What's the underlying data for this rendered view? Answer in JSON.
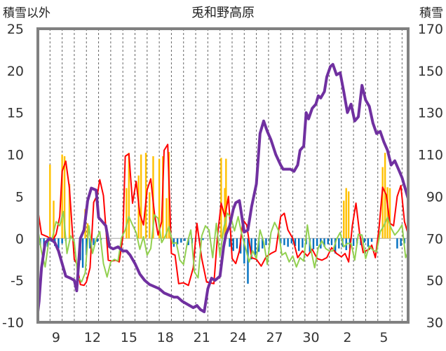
{
  "chart_data": {
    "type": "line",
    "title": "兎和野高原",
    "left_axis": {
      "label": "積雪以外",
      "ylim": [
        -10,
        25
      ],
      "ticks": [
        "25",
        "20",
        "15",
        "10",
        "5",
        "0",
        "-5",
        "-10"
      ]
    },
    "right_axis": {
      "label": "積雪",
      "ylim": [
        30,
        170
      ],
      "ticks": [
        "170",
        "150",
        "130",
        "110",
        "90",
        "70",
        "50",
        "30"
      ]
    },
    "x_tick_labels": [
      "9",
      "12",
      "15",
      "18",
      "21",
      "24",
      "27",
      "30",
      "2",
      "5"
    ],
    "x_tick_positions_days": [
      1.5,
      4.5,
      7.5,
      10.5,
      13.5,
      16.5,
      19.5,
      22.5,
      25.5,
      28.5
    ],
    "xlim_days": [
      0,
      30.5
    ],
    "grid": {
      "vertical_dashed": true,
      "horizontal": false
    },
    "colors": {
      "temperature_max": "#ff0000",
      "temperature_min": "#92d050",
      "sunshine": "#ffc000",
      "precipitation": "#0070c0",
      "snow_depth": "#7030a0",
      "frame": "#808080",
      "grid": "#666666"
    },
    "series": [
      {
        "axis": "left",
        "kind": "line",
        "x": [
          0,
          0.3,
          0.8,
          1.2,
          1.5,
          1.8,
          2.0,
          2.3,
          2.6,
          3.0,
          3.2,
          3.5,
          3.8,
          4.0,
          4.3,
          4.6,
          4.9,
          5.1,
          5.4,
          5.8,
          6.1,
          6.4,
          6.7,
          7.0,
          7.2,
          7.5,
          7.8,
          8.1,
          8.4,
          8.7,
          9.0,
          9.3,
          9.6,
          9.9,
          10.2,
          10.4,
          10.7,
          11.0,
          11.3,
          11.6,
          12.0,
          12.4,
          12.8,
          13.1,
          13.5,
          13.9,
          14.2,
          14.5,
          14.8,
          15.1,
          15.4,
          15.7,
          16.0,
          16.3,
          16.6,
          16.9,
          17.2,
          17.6,
          18.0,
          18.4,
          18.8,
          19.2,
          19.6,
          20.0,
          20.3,
          20.6,
          21.0,
          21.4,
          21.8,
          22.2,
          22.6,
          23.0,
          23.4,
          23.8,
          24.2,
          24.6,
          25.0,
          25.3,
          25.6,
          25.9,
          26.2,
          26.5,
          26.8,
          27.0,
          27.3,
          27.5,
          27.8,
          28.1,
          28.4,
          28.7,
          29.0,
          29.3,
          29.6,
          29.9,
          30.2,
          30.5
        ],
        "values": [
          3.4,
          0.5,
          0.2,
          -0.3,
          0.5,
          2.6,
          8.0,
          9.2,
          6.0,
          -2.5,
          -3.0,
          -5.5,
          -5.6,
          -5.2,
          -3.5,
          4.3,
          5.2,
          7.0,
          5.1,
          -2.6,
          -2.7,
          -2.6,
          -2.8,
          0.2,
          9.8,
          10.1,
          4.2,
          6.8,
          2.9,
          1.6,
          5.8,
          7.1,
          3.0,
          0.4,
          2.0,
          10.5,
          11.2,
          -1.8,
          -2.0,
          -5.4,
          -5.3,
          -5.6,
          -3.5,
          1.8,
          -2.4,
          -5.2,
          -5.3,
          -5.4,
          0.3,
          4.2,
          2.6,
          5.0,
          -2.4,
          -3.0,
          -1.5,
          2.2,
          1.6,
          -2.3,
          -2.5,
          -3.3,
          -2.2,
          -1.8,
          -1.5,
          2.6,
          3.0,
          1.0,
          0.0,
          -2.3,
          -1.5,
          -2.1,
          -1.3,
          -2.4,
          -2.6,
          -2.3,
          -1.1,
          -1.8,
          -2.2,
          -1.8,
          -2.8,
          1.5,
          4.2,
          0.6,
          -1.7,
          -1.5,
          -1.3,
          -0.8,
          -2.3,
          1.2,
          6.1,
          5.2,
          1.8,
          1.5,
          5.0,
          6.3,
          2.0,
          0.5
        ]
      },
      {
        "axis": "left",
        "kind": "line",
        "x": [
          0,
          0.3,
          0.6,
          0.9,
          1.2,
          1.5,
          1.8,
          2.1,
          2.4,
          2.7,
          3.0,
          3.3,
          3.6,
          3.9,
          4.2,
          4.5,
          4.8,
          5.1,
          5.4,
          5.7,
          6.0,
          6.3,
          6.6,
          6.9,
          7.2,
          7.5,
          7.8,
          8.1,
          8.4,
          8.7,
          9.0,
          9.3,
          9.6,
          9.9,
          10.2,
          10.5,
          10.8,
          11.1,
          11.4,
          11.7,
          12.0,
          12.3,
          12.6,
          12.9,
          13.2,
          13.5,
          13.8,
          14.1,
          14.4,
          14.7,
          15.0,
          15.3,
          15.6,
          15.9,
          16.2,
          16.5,
          16.8,
          17.1,
          17.4,
          17.7,
          18.0,
          18.3,
          18.6,
          18.9,
          19.2,
          19.5,
          19.8,
          20.1,
          20.4,
          20.7,
          21.0,
          21.3,
          21.6,
          21.9,
          22.2,
          22.5,
          22.8,
          23.1,
          23.4,
          23.7,
          24.0,
          24.3,
          24.6,
          24.9,
          25.2,
          25.5,
          25.8,
          26.1,
          26.4,
          26.7,
          27.0,
          27.3,
          27.6,
          27.9,
          28.2,
          28.5,
          28.8,
          29.1,
          29.4,
          29.7,
          30.0,
          30.3,
          30.5
        ],
        "values": [
          1.1,
          -1.6,
          -3.4,
          -0.3,
          0.1,
          2.0,
          1.5,
          3.2,
          -1.8,
          0.3,
          -0.4,
          -4.6,
          -5.2,
          -4.1,
          1.5,
          -1.8,
          -0.1,
          0.8,
          -3.0,
          -4.6,
          -2.8,
          -2.5,
          -2.7,
          0.1,
          1.0,
          2.6,
          1.6,
          0.7,
          -1.3,
          0.2,
          -2.0,
          -1.2,
          2.8,
          2.4,
          -0.5,
          0.3,
          1.4,
          -0.6,
          -0.5,
          -2.6,
          -3.1,
          -0.6,
          1.0,
          -4.0,
          -4.7,
          0.3,
          1.5,
          1.0,
          -2.3,
          1.8,
          -2.1,
          1.2,
          3.0,
          2.5,
          0.9,
          2.6,
          0.5,
          -1.1,
          -2.8,
          -1.5,
          -2.4,
          1.0,
          -0.4,
          -3.1,
          0.7,
          1.9,
          1.0,
          -2.0,
          -1.7,
          -2.8,
          -2.1,
          -3.4,
          -2.3,
          -2.7,
          1.6,
          -1.4,
          -3.5,
          -1.1,
          -0.3,
          -1.2,
          -1.5,
          -1.5,
          -0.1,
          0.7,
          -1.0,
          -0.6,
          -0.6,
          -2.6,
          0.5,
          0.4,
          -2.4,
          -0.9,
          -1.4,
          -1.6,
          0.8,
          1.5,
          2.5,
          1.2,
          0.4,
          0.9,
          1.6,
          -2.3,
          -1.6
        ]
      },
      {
        "axis": "left",
        "kind": "bar",
        "x": [
          1.0,
          1.3,
          2.0,
          2.2,
          2.6,
          3.9,
          4.1,
          7.3,
          7.5,
          8.3,
          8.5,
          8.9,
          9.2,
          9.5,
          10.0,
          10.3,
          10.6,
          10.8,
          15.1,
          15.4,
          15.5,
          25.2,
          25.4,
          25.6,
          28.4,
          28.6,
          28.8,
          29.0
        ],
        "values": [
          8.8,
          4.5,
          10.0,
          9.8,
          6.5,
          3.5,
          1.8,
          6.0,
          10.2,
          7.5,
          10.0,
          10.2,
          5.5,
          9.8,
          9.5,
          9.8,
          4.8,
          10.3,
          9.6,
          6.0,
          9.5,
          4.5,
          6.0,
          5.6,
          8.5,
          10.2,
          6.1,
          6.0
        ]
      },
      {
        "axis": "left",
        "kind": "bar",
        "x": [
          0.2,
          0.5,
          0.8,
          1.1,
          1.4,
          1.7,
          2.0,
          2.3,
          3.5,
          3.7,
          4.0,
          4.3,
          4.6,
          4.9,
          5.2,
          11.2,
          11.5,
          11.8,
          12.1,
          12.4,
          12.7,
          13.0,
          13.3,
          13.6,
          15.8,
          16.1,
          16.4,
          16.7,
          17.0,
          17.3,
          17.6,
          17.9,
          18.2,
          18.5,
          18.8,
          19.1,
          20.0,
          20.3,
          20.6,
          20.9,
          21.2,
          21.5,
          21.8,
          22.1,
          22.4,
          22.7,
          23.0,
          23.3,
          23.6,
          23.9,
          24.2,
          24.5,
          24.8,
          25.1,
          25.4,
          25.7,
          26.0,
          26.3,
          26.6,
          26.9,
          27.2,
          27.5,
          29.6,
          29.9,
          30.2
        ],
        "values": [
          -0.8,
          -1.5,
          -1.0,
          -0.4,
          -0.9,
          -1.2,
          -0.6,
          -0.3,
          -2.6,
          -3.5,
          -2.0,
          -1.2,
          -0.8,
          -0.4,
          -0.2,
          -1.0,
          -0.7,
          -0.5,
          -0.3,
          -0.8,
          -0.6,
          -0.4,
          -0.3,
          -0.2,
          -1.0,
          -1.5,
          -1.2,
          -1.8,
          -3.0,
          -5.4,
          -2.5,
          -2.0,
          -1.6,
          -1.2,
          -0.8,
          -0.5,
          -0.6,
          -0.8,
          -1.0,
          -0.6,
          -0.9,
          -1.5,
          -1.1,
          -0.7,
          -1.6,
          -1.3,
          -0.9,
          -1.2,
          -1.0,
          -0.7,
          -0.8,
          -1.8,
          -1.2,
          -1.0,
          -1.4,
          -1.2,
          -0.9,
          -0.6,
          -0.8,
          -0.5,
          -1.0,
          -0.4,
          -1.2,
          -0.9,
          -0.6
        ]
      },
      {
        "axis": "right",
        "kind": "line",
        "x": [
          0.0,
          0.1,
          0.3,
          0.6,
          1.0,
          1.4,
          1.7,
          2.0,
          2.3,
          2.7,
          3.0,
          3.2,
          3.5,
          3.8,
          4.1,
          4.4,
          4.8,
          5.0,
          5.3,
          5.6,
          5.9,
          6.2,
          6.6,
          7.0,
          7.3,
          7.6,
          8.0,
          8.4,
          8.8,
          9.2,
          9.6,
          10.0,
          10.4,
          10.8,
          11.2,
          11.5,
          11.9,
          12.2,
          12.5,
          12.8,
          13.1,
          13.4,
          13.7,
          14.0,
          14.3,
          14.6,
          15.0,
          15.3,
          15.5,
          15.8,
          16.1,
          16.3,
          16.6,
          17.0,
          17.3,
          17.6,
          18.0,
          18.3,
          18.6,
          18.9,
          19.2,
          19.6,
          20.0,
          20.2,
          20.5,
          20.8,
          21.1,
          21.4,
          21.6,
          21.9,
          22.1,
          22.3,
          22.6,
          22.9,
          23.1,
          23.3,
          23.6,
          23.8,
          24.1,
          24.3,
          24.6,
          24.9,
          25.2,
          25.5,
          25.8,
          26.1,
          26.4,
          26.7,
          27.0,
          27.3,
          27.6,
          27.9,
          28.2,
          28.5,
          28.8,
          29.1,
          29.4,
          29.7,
          30.0,
          30.3,
          30.5
        ],
        "values": [
          35,
          40,
          56,
          68,
          70,
          68,
          64,
          58,
          52,
          51,
          50,
          45,
          70,
          74,
          88,
          94,
          93,
          80,
          78,
          76,
          66,
          65,
          66,
          64,
          64,
          62,
          58,
          53,
          50,
          48,
          47,
          46,
          44,
          43,
          42,
          42,
          40,
          39,
          38,
          37,
          38,
          36,
          35,
          46,
          51,
          50,
          52,
          66,
          72,
          76,
          84,
          87,
          88,
          73,
          74,
          85,
          96,
          120,
          126,
          121,
          117,
          110,
          105,
          103,
          103,
          103,
          102,
          105,
          112,
          114,
          130,
          127,
          132,
          134,
          138,
          137,
          140,
          147,
          152,
          153,
          148,
          149,
          140,
          130,
          134,
          126,
          128,
          143,
          136,
          133,
          125,
          120,
          121,
          116,
          112,
          105,
          107,
          103,
          99,
          93,
          89
        ]
      }
    ],
    "series_roles": [
      "temperature_max",
      "temperature_min",
      "sunshine",
      "precipitation",
      "snow_depth"
    ]
  }
}
